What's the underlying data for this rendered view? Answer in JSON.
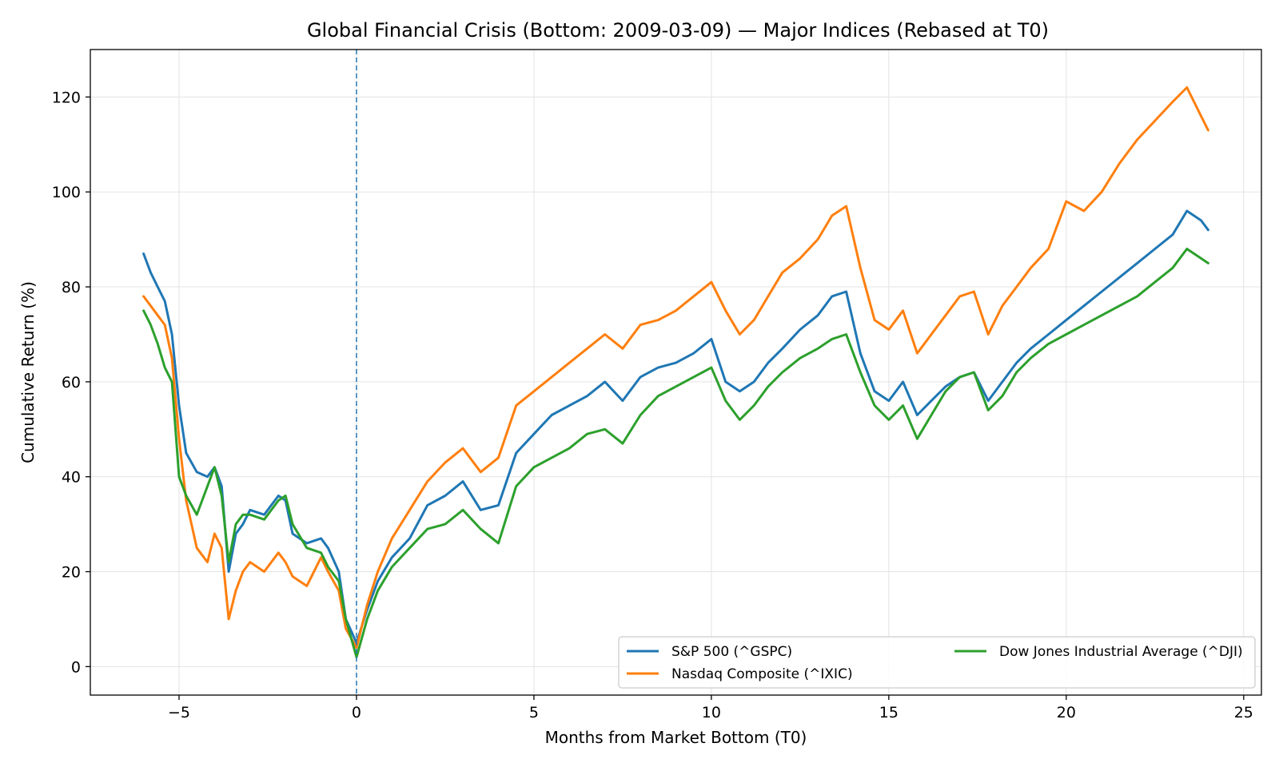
{
  "chart_data": {
    "type": "line",
    "title": "Global Financial Crisis (Bottom: 2009-03-09) — Major Indices (Rebased at T0)",
    "xlabel": "Months from Market Bottom (T0)",
    "ylabel": "Cumulative Return (%)",
    "xlim": [
      -7.5,
      25.5
    ],
    "ylim": [
      -6,
      130
    ],
    "xticks": [
      -5,
      0,
      5,
      10,
      15,
      20,
      25
    ],
    "xtick_labels": [
      "−5",
      "0",
      "5",
      "10",
      "15",
      "20",
      "25"
    ],
    "yticks": [
      0,
      20,
      40,
      60,
      80,
      100,
      120
    ],
    "ytick_labels": [
      "0",
      "20",
      "40",
      "60",
      "80",
      "100",
      "120"
    ],
    "grid": true,
    "legend_position": "bottom-right",
    "vline": {
      "x": 0,
      "style": "dashed",
      "color": "#1f77b4"
    },
    "series": [
      {
        "name": "S&P 500 (^GSPC)",
        "color": "#1f77b4",
        "x": [
          -6,
          -5.8,
          -5.6,
          -5.4,
          -5.2,
          -5,
          -4.8,
          -4.5,
          -4.2,
          -4,
          -3.8,
          -3.6,
          -3.4,
          -3.2,
          -3,
          -2.6,
          -2.2,
          -2,
          -1.8,
          -1.4,
          -1,
          -0.8,
          -0.5,
          -0.3,
          0,
          0.3,
          0.6,
          1,
          1.5,
          2,
          2.5,
          3,
          3.5,
          4,
          4.5,
          5,
          5.5,
          6,
          6.5,
          7,
          7.5,
          8,
          8.5,
          9,
          9.5,
          10,
          10.4,
          10.8,
          11.2,
          11.6,
          12,
          12.5,
          13,
          13.4,
          13.8,
          14.2,
          14.6,
          15,
          15.4,
          15.8,
          16.2,
          16.6,
          17,
          17.4,
          17.8,
          18.2,
          18.6,
          19,
          19.5,
          20,
          20.5,
          21,
          21.5,
          22,
          22.5,
          23,
          23.4,
          23.8,
          24
        ],
        "values": [
          87,
          83,
          80,
          77,
          70,
          55,
          45,
          41,
          40,
          42,
          38,
          20,
          28,
          30,
          33,
          32,
          36,
          35,
          28,
          26,
          27,
          25,
          20,
          10,
          5,
          12,
          18,
          23,
          27,
          34,
          36,
          39,
          33,
          34,
          45,
          49,
          53,
          55,
          57,
          60,
          56,
          61,
          63,
          64,
          66,
          69,
          60,
          58,
          60,
          64,
          67,
          71,
          74,
          78,
          79,
          66,
          58,
          56,
          60,
          53,
          56,
          59,
          61,
          62,
          56,
          60,
          64,
          67,
          70,
          73,
          76,
          79,
          82,
          85,
          88,
          91,
          96,
          94,
          92
        ]
      },
      {
        "name": "Nasdaq Composite (^IXIC)",
        "color": "#ff7f0e",
        "x": [
          -6,
          -5.8,
          -5.6,
          -5.4,
          -5.2,
          -5,
          -4.8,
          -4.5,
          -4.2,
          -4,
          -3.8,
          -3.6,
          -3.4,
          -3.2,
          -3,
          -2.6,
          -2.2,
          -2,
          -1.8,
          -1.4,
          -1,
          -0.8,
          -0.5,
          -0.3,
          0,
          0.3,
          0.6,
          1,
          1.5,
          2,
          2.5,
          3,
          3.5,
          4,
          4.5,
          5,
          5.5,
          6,
          6.5,
          7,
          7.5,
          8,
          8.5,
          9,
          9.5,
          10,
          10.4,
          10.8,
          11.2,
          11.6,
          12,
          12.5,
          13,
          13.4,
          13.8,
          14.2,
          14.6,
          15,
          15.4,
          15.8,
          16.2,
          16.6,
          17,
          17.4,
          17.8,
          18.2,
          18.6,
          19,
          19.5,
          20,
          20.5,
          21,
          21.5,
          22,
          22.5,
          23,
          23.4,
          23.8,
          24
        ],
        "values": [
          78,
          76,
          74,
          72,
          65,
          48,
          35,
          25,
          22,
          28,
          25,
          10,
          16,
          20,
          22,
          20,
          24,
          22,
          19,
          17,
          23,
          20,
          16,
          8,
          4,
          13,
          20,
          27,
          33,
          39,
          43,
          46,
          41,
          44,
          55,
          58,
          61,
          64,
          67,
          70,
          67,
          72,
          73,
          75,
          78,
          81,
          75,
          70,
          73,
          78,
          83,
          86,
          90,
          95,
          97,
          84,
          73,
          71,
          75,
          66,
          70,
          74,
          78,
          79,
          70,
          76,
          80,
          84,
          88,
          98,
          96,
          100,
          106,
          111,
          115,
          119,
          122,
          116,
          113
        ]
      },
      {
        "name": "Dow Jones Industrial Average (^DJI)",
        "color": "#2ca02c",
        "x": [
          -6,
          -5.8,
          -5.6,
          -5.4,
          -5.2,
          -5,
          -4.8,
          -4.5,
          -4.2,
          -4,
          -3.8,
          -3.6,
          -3.4,
          -3.2,
          -3,
          -2.6,
          -2.2,
          -2,
          -1.8,
          -1.4,
          -1,
          -0.8,
          -0.5,
          -0.3,
          0,
          0.3,
          0.6,
          1,
          1.5,
          2,
          2.5,
          3,
          3.5,
          4,
          4.5,
          5,
          5.5,
          6,
          6.5,
          7,
          7.5,
          8,
          8.5,
          9,
          9.5,
          10,
          10.4,
          10.8,
          11.2,
          11.6,
          12,
          12.5,
          13,
          13.4,
          13.8,
          14.2,
          14.6,
          15,
          15.4,
          15.8,
          16.2,
          16.6,
          17,
          17.4,
          17.8,
          18.2,
          18.6,
          19,
          19.5,
          20,
          20.5,
          21,
          21.5,
          22,
          22.5,
          23,
          23.4,
          23.8,
          24
        ],
        "values": [
          75,
          72,
          68,
          63,
          60,
          40,
          36,
          32,
          38,
          42,
          36,
          22,
          30,
          32,
          32,
          31,
          35,
          36,
          30,
          25,
          24,
          21,
          18,
          10,
          2,
          10,
          16,
          21,
          25,
          29,
          30,
          33,
          29,
          26,
          38,
          42,
          44,
          46,
          49,
          50,
          47,
          53,
          57,
          59,
          61,
          63,
          56,
          52,
          55,
          59,
          62,
          65,
          67,
          69,
          70,
          62,
          55,
          52,
          55,
          48,
          53,
          58,
          61,
          62,
          54,
          57,
          62,
          65,
          68,
          70,
          72,
          74,
          76,
          78,
          81,
          84,
          88,
          86,
          85
        ]
      }
    ]
  }
}
